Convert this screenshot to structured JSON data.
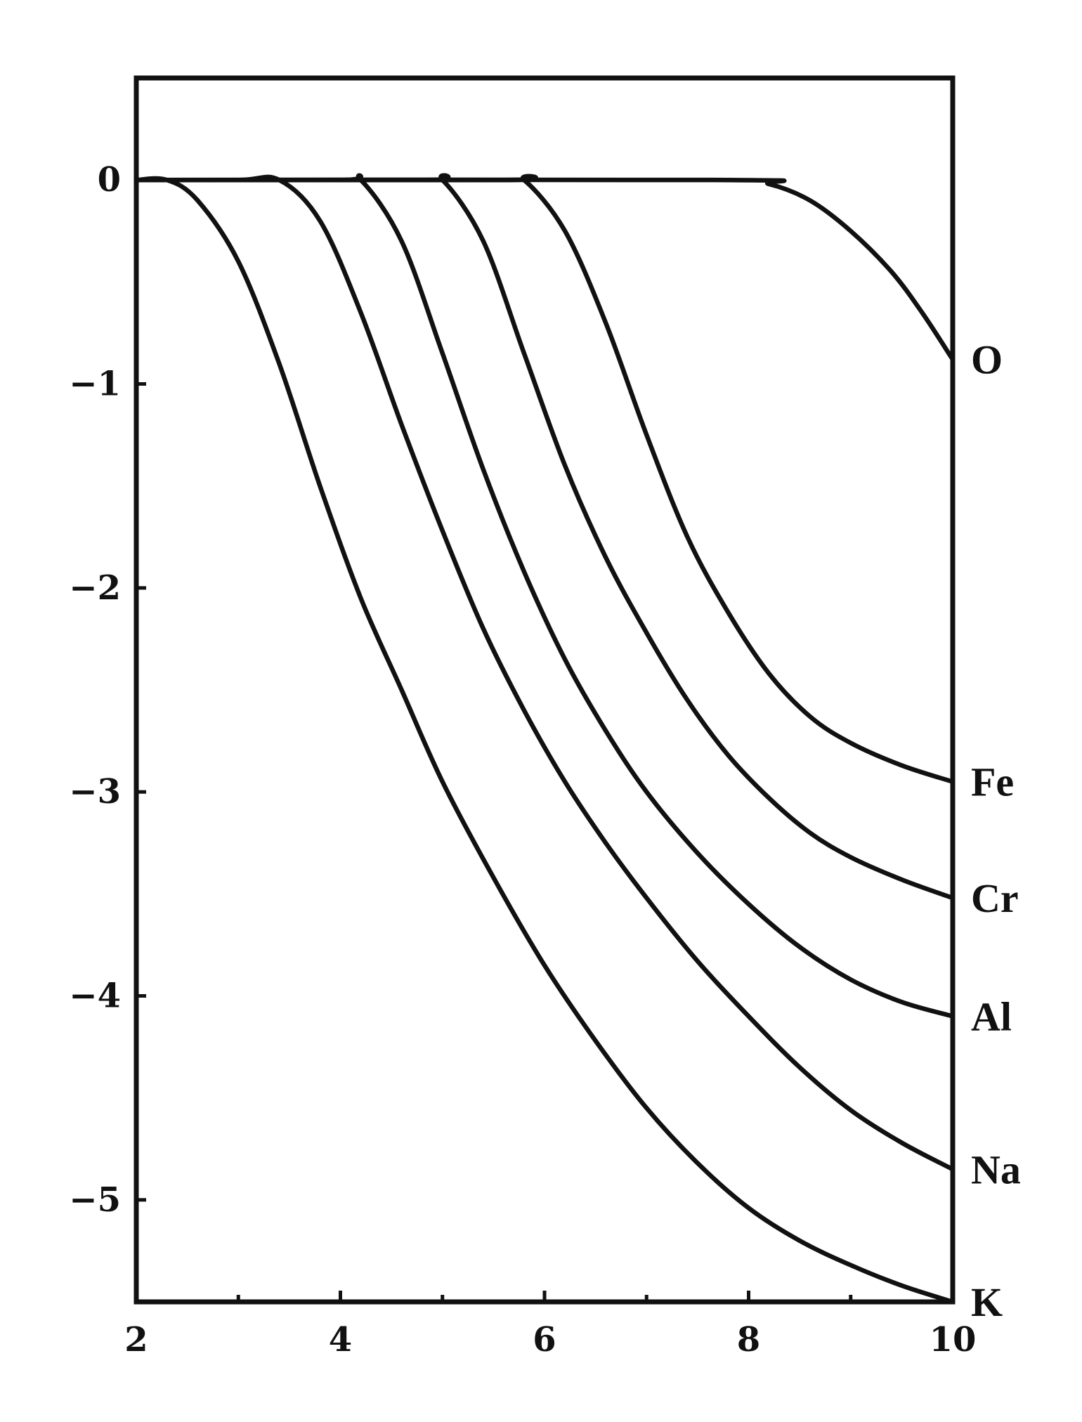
{
  "chart_data": {
    "type": "line",
    "title": "",
    "xlabel": "",
    "ylabel": "",
    "xlim": [
      2,
      10
    ],
    "ylim": [
      -5.5,
      0.5
    ],
    "grid": false,
    "legend": "none",
    "x_ticks": [
      {
        "value": 2,
        "label": "2"
      },
      {
        "value": 4,
        "label": "4"
      },
      {
        "value": 6,
        "label": "6"
      },
      {
        "value": 8,
        "label": "8"
      },
      {
        "value": 10,
        "label": "10"
      }
    ],
    "x_minor_ticks": [
      3,
      5,
      7,
      9
    ],
    "y_ticks": [
      {
        "value": 0,
        "label": "0"
      },
      {
        "value": -1,
        "label": "−1"
      },
      {
        "value": -2,
        "label": "−2"
      },
      {
        "value": -3,
        "label": "−3"
      },
      {
        "value": -4,
        "label": "−4"
      },
      {
        "value": -5,
        "label": "−5"
      }
    ],
    "series": [
      {
        "label": "K",
        "x": [
          2.0,
          2.3,
          2.6,
          3.0,
          3.4,
          3.8,
          4.2,
          4.6,
          5.0,
          5.5,
          6.0,
          6.5,
          7.0,
          7.5,
          8.0,
          8.5,
          9.0,
          9.5,
          10.0
        ],
        "y": [
          0.0,
          0.0,
          -0.1,
          -0.4,
          -0.9,
          -1.5,
          -2.05,
          -2.5,
          -2.95,
          -3.42,
          -3.85,
          -4.22,
          -4.55,
          -4.82,
          -5.04,
          -5.2,
          -5.32,
          -5.42,
          -5.5
        ]
      },
      {
        "label": "Na",
        "x": [
          2.0,
          3.0,
          3.4,
          3.8,
          4.2,
          4.6,
          5.0,
          5.4,
          5.8,
          6.2,
          6.6,
          7.0,
          7.5,
          8.0,
          8.5,
          9.0,
          9.5,
          10.0
        ],
        "y": [
          0.0,
          0.0,
          0.0,
          -0.2,
          -0.65,
          -1.2,
          -1.72,
          -2.2,
          -2.6,
          -2.95,
          -3.25,
          -3.52,
          -3.83,
          -4.1,
          -4.35,
          -4.56,
          -4.72,
          -4.85
        ]
      },
      {
        "label": "Al",
        "x": [
          2.0,
          4.0,
          4.2,
          4.6,
          5.0,
          5.4,
          5.8,
          6.2,
          6.6,
          7.0,
          7.5,
          8.0,
          8.5,
          9.0,
          9.5,
          10.0
        ],
        "y": [
          0.0,
          0.0,
          0.0,
          -0.3,
          -0.85,
          -1.42,
          -1.92,
          -2.35,
          -2.7,
          -3.0,
          -3.3,
          -3.55,
          -3.76,
          -3.92,
          -4.03,
          -4.1
        ]
      },
      {
        "label": "Cr",
        "x": [
          2.0,
          4.8,
          5.0,
          5.4,
          5.8,
          6.2,
          6.6,
          7.0,
          7.4,
          7.8,
          8.2,
          8.6,
          9.0,
          9.5,
          10.0
        ],
        "y": [
          0.0,
          0.0,
          0.0,
          -0.3,
          -0.85,
          -1.4,
          -1.85,
          -2.22,
          -2.55,
          -2.82,
          -3.03,
          -3.2,
          -3.32,
          -3.43,
          -3.52
        ]
      },
      {
        "label": "Fe",
        "x": [
          2.0,
          5.6,
          5.8,
          6.2,
          6.6,
          7.0,
          7.4,
          7.8,
          8.2,
          8.6,
          9.0,
          9.5,
          10.0
        ],
        "y": [
          0.0,
          0.0,
          0.0,
          -0.25,
          -0.7,
          -1.25,
          -1.75,
          -2.12,
          -2.42,
          -2.63,
          -2.76,
          -2.87,
          -2.95
        ]
      },
      {
        "label": "O",
        "x": [
          2.0,
          7.8,
          8.2,
          8.6,
          9.0,
          9.4,
          9.7,
          10.0
        ],
        "y": [
          0.0,
          0.0,
          -0.02,
          -0.1,
          -0.25,
          -0.45,
          -0.65,
          -0.88
        ]
      }
    ]
  }
}
